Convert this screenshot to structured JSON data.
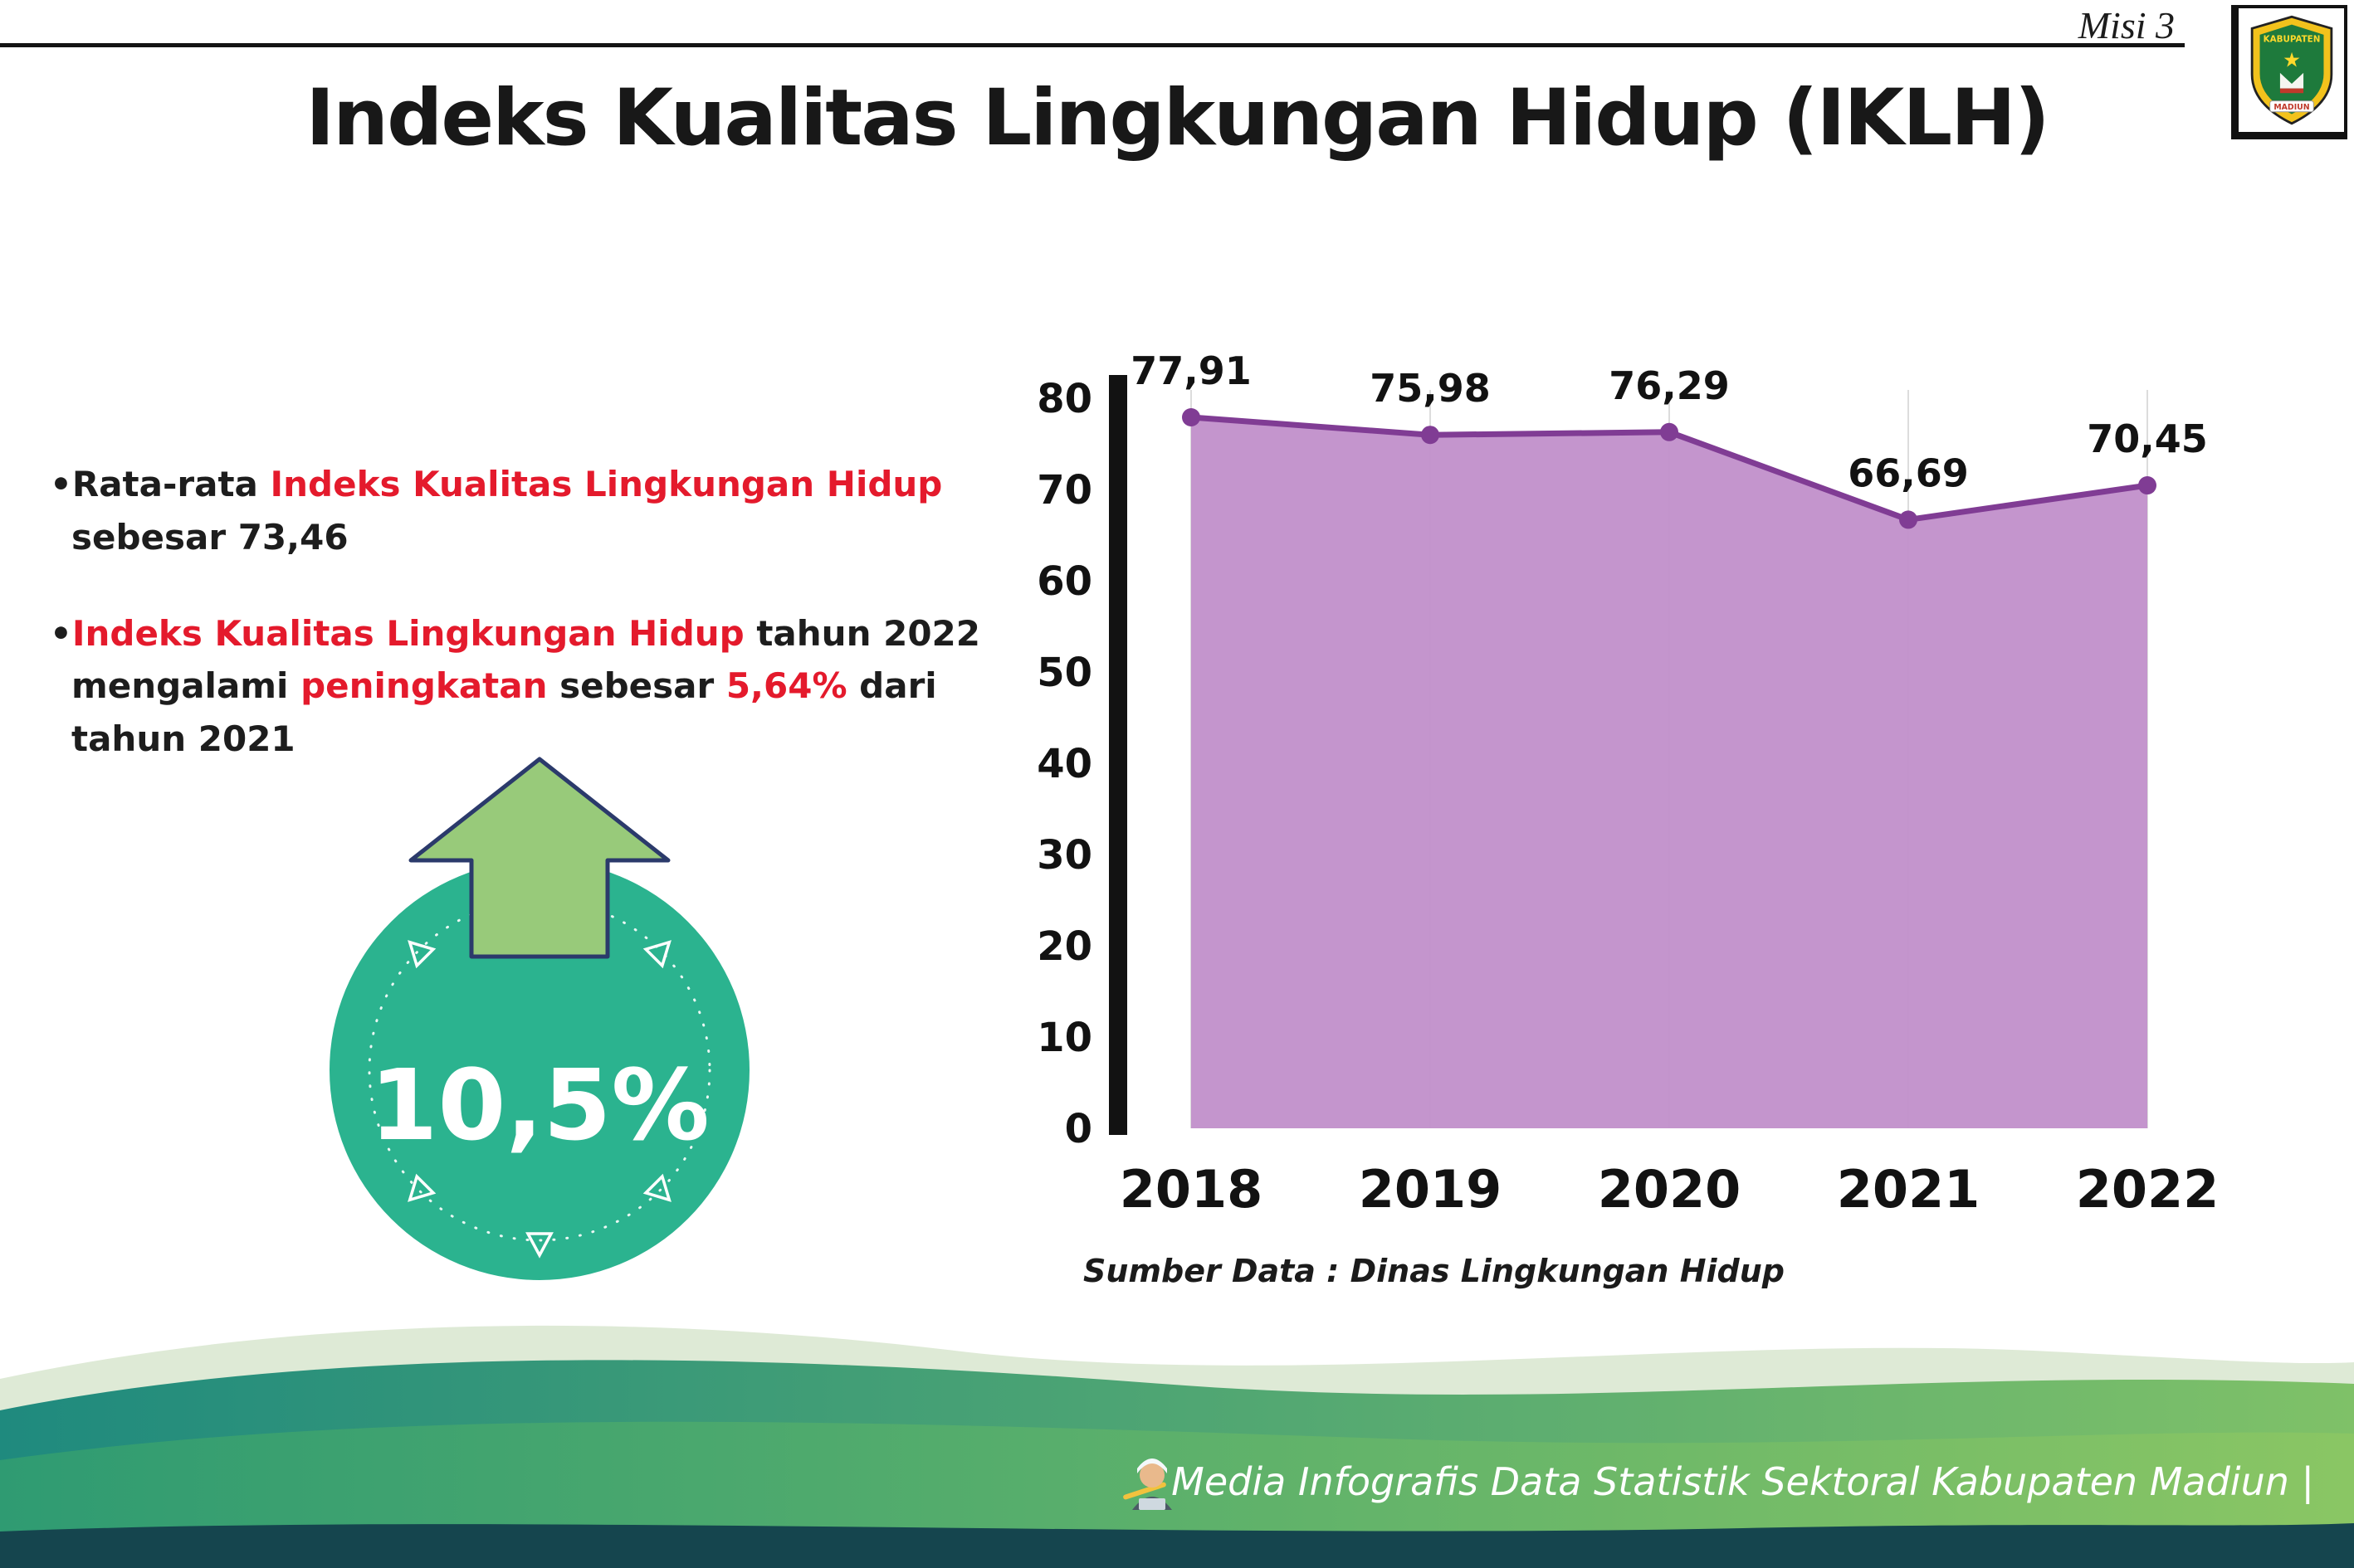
{
  "palette": {
    "accent_red": "#e41a2c",
    "badge_teal": "#2bb38f",
    "arrow_green": "#98ca7a",
    "footer_teal": "#1f8a7e",
    "footer_green": "#8ac664",
    "footer_navy": "#15454e"
  },
  "header": {
    "misi_label": "Misi 3",
    "title": "Indeks Kualitas Lingkungan Hidup (IKLH)",
    "logo": {
      "top_text": "KABUPATEN",
      "bottom_text": "MADIUN",
      "star": "★"
    }
  },
  "notes": [
    {
      "bullet": "•",
      "lines": [
        {
          "segments": [
            {
              "text": "Rata-rata "
            },
            {
              "text": "Indeks Kualitas Lingkungan Hidup",
              "highlight": true
            }
          ]
        },
        {
          "segments": [
            {
              "text": "sebesar 73,46"
            }
          ]
        }
      ]
    },
    {
      "bullet": "•",
      "lines": [
        {
          "segments": [
            {
              "text": "Indeks Kualitas Lingkungan Hidup",
              "highlight": true
            },
            {
              "text": " tahun 2022"
            }
          ]
        },
        {
          "segments": [
            {
              "text": "mengalami "
            },
            {
              "text": "peningkatan",
              "highlight": true
            },
            {
              "text": " sebesar "
            },
            {
              "text": "5,64%",
              "highlight": true
            },
            {
              "text": " dari"
            }
          ]
        },
        {
          "segments": [
            {
              "text": "tahun 2021"
            }
          ]
        }
      ]
    }
  ],
  "badge": {
    "value": "10,5%"
  },
  "chart_data": {
    "type": "area",
    "categories": [
      "2018",
      "2019",
      "2020",
      "2021",
      "2022"
    ],
    "values": [
      77.91,
      75.98,
      76.29,
      66.69,
      70.45
    ],
    "value_labels": [
      "77,91",
      "75,98",
      "76,29",
      "66,69",
      "70,45"
    ],
    "title": "Indeks Kualitas Lingkungan Hidup (IKLH)",
    "xlabel": "",
    "ylabel": "",
    "ylim": [
      0,
      80
    ],
    "ytick_step": 10,
    "grid": "vertical-light",
    "legend": "none",
    "fill_color": "#c18fca",
    "line_color": "#803c94"
  },
  "chart_source": "Sumber Data : Dinas Lingkungan Hidup",
  "footer": {
    "caption": "Media Infografis Data Statistik Sektoral Kabupaten Madiun |"
  }
}
